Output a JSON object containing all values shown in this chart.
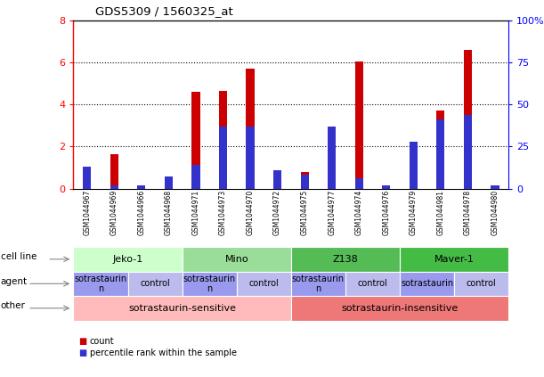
{
  "title": "GDS5309 / 1560325_at",
  "samples": [
    "GSM1044967",
    "GSM1044969",
    "GSM1044966",
    "GSM1044968",
    "GSM1044971",
    "GSM1044973",
    "GSM1044970",
    "GSM1044972",
    "GSM1044975",
    "GSM1044977",
    "GSM1044974",
    "GSM1044976",
    "GSM1044979",
    "GSM1044981",
    "GSM1044978",
    "GSM1044980"
  ],
  "red_values": [
    0.75,
    1.65,
    0.12,
    0.55,
    4.6,
    4.65,
    5.7,
    0.12,
    0.8,
    1.75,
    6.05,
    0.12,
    0.12,
    3.7,
    6.6,
    0.12
  ],
  "blue_pct": [
    13,
    2,
    2,
    7,
    14,
    37,
    37,
    11,
    8,
    37,
    6,
    2,
    28,
    41,
    44,
    2
  ],
  "ylim_left": [
    0,
    8
  ],
  "ylim_right": [
    0,
    100
  ],
  "yticks_left": [
    0,
    2,
    4,
    6,
    8
  ],
  "yticks_right": [
    0,
    25,
    50,
    75,
    100
  ],
  "red_color": "#cc0000",
  "blue_color": "#3333cc",
  "bar_width": 0.3,
  "cell_line_groups": [
    {
      "label": "Jeko-1",
      "start": 0,
      "end": 4,
      "color": "#ccffcc"
    },
    {
      "label": "Mino",
      "start": 4,
      "end": 8,
      "color": "#99dd99"
    },
    {
      "label": "Z138",
      "start": 8,
      "end": 12,
      "color": "#55bb55"
    },
    {
      "label": "Maver-1",
      "start": 12,
      "end": 16,
      "color": "#44bb44"
    }
  ],
  "agent_groups": [
    {
      "label": "sotrastaurin\nn",
      "start": 0,
      "end": 2,
      "color": "#9999ee"
    },
    {
      "label": "control",
      "start": 2,
      "end": 4,
      "color": "#bbbbee"
    },
    {
      "label": "sotrastaurin\nn",
      "start": 4,
      "end": 6,
      "color": "#9999ee"
    },
    {
      "label": "control",
      "start": 6,
      "end": 8,
      "color": "#bbbbee"
    },
    {
      "label": "sotrastaurin\nn",
      "start": 8,
      "end": 10,
      "color": "#9999ee"
    },
    {
      "label": "control",
      "start": 10,
      "end": 12,
      "color": "#bbbbee"
    },
    {
      "label": "sotrastaurin",
      "start": 12,
      "end": 14,
      "color": "#9999ee"
    },
    {
      "label": "control",
      "start": 14,
      "end": 16,
      "color": "#bbbbee"
    }
  ],
  "other_groups": [
    {
      "label": "sotrastaurin-sensitive",
      "start": 0,
      "end": 8,
      "color": "#ffbbbb"
    },
    {
      "label": "sotrastaurin-insensitive",
      "start": 8,
      "end": 16,
      "color": "#ee7777"
    }
  ],
  "row_labels": [
    "cell line",
    "agent",
    "other"
  ]
}
